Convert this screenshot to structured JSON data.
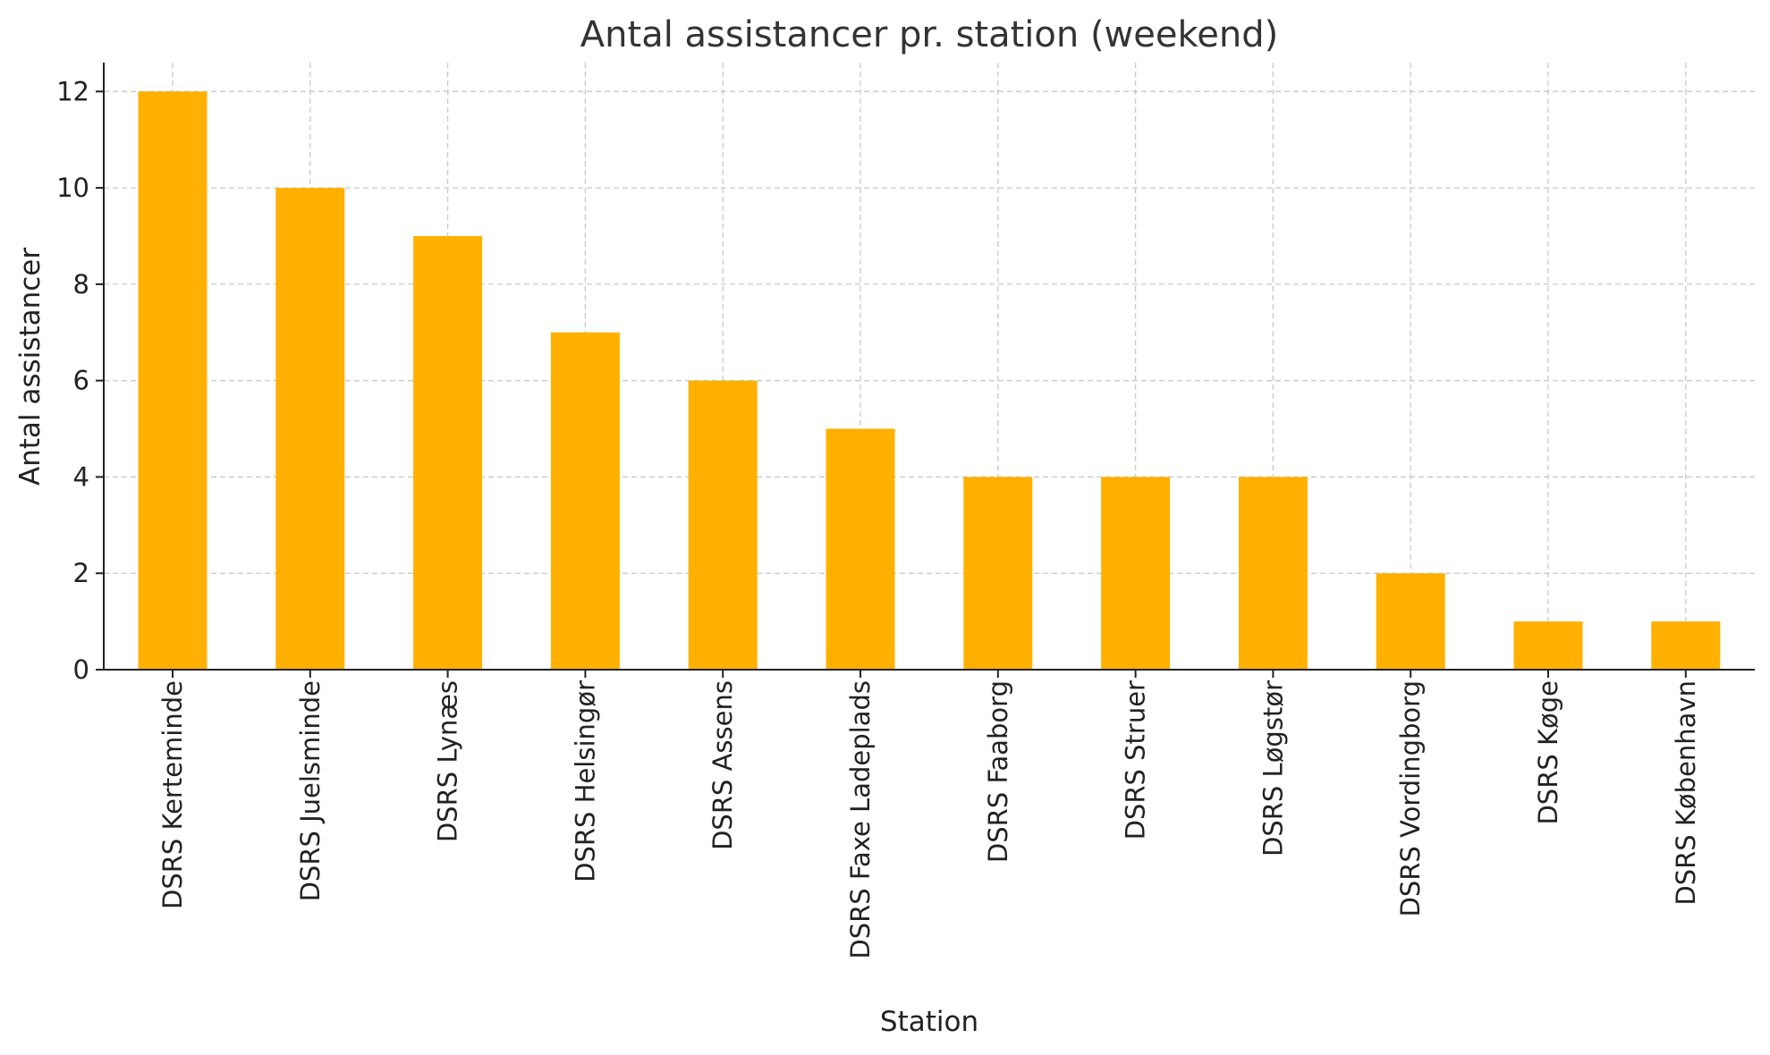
{
  "chart_data": {
    "type": "bar",
    "title": "Antal assistancer pr. station (weekend)",
    "xlabel": "Station",
    "ylabel": "Antal assistancer",
    "categories": [
      "DSRS Kerteminde",
      "DSRS Juelsminde",
      "DSRS Lynæs",
      "DSRS Helsingør",
      "DSRS Assens",
      "DSRS Faxe Ladeplads",
      "DSRS Faaborg",
      "DSRS Struer",
      "DSRS Løgstør",
      "DSRS Vordingborg",
      "DSRS Køge",
      "DSRS København"
    ],
    "values": [
      12,
      10,
      9,
      7,
      6,
      5,
      4,
      4,
      4,
      2,
      1,
      1
    ],
    "ylim": [
      0,
      12.6
    ],
    "yticks": [
      0,
      2,
      4,
      6,
      8,
      10,
      12
    ],
    "grid": true,
    "bar_color": "#FFB000"
  }
}
